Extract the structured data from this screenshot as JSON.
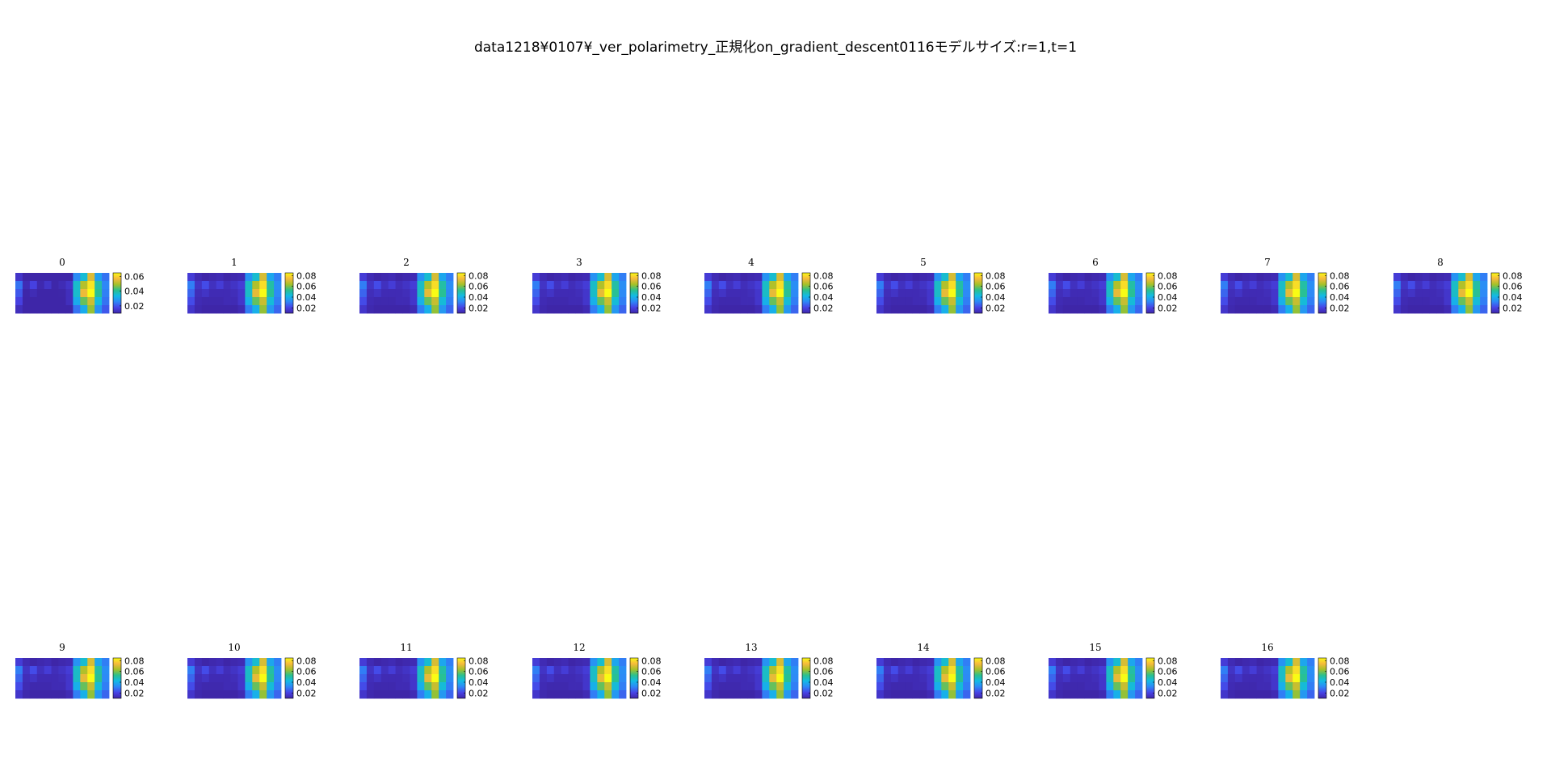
{
  "figure": {
    "title": "data1218¥0107¥_ver_polarimetry_正規化on_gradient_descent0116モデルサイズ:r=1,t=1"
  },
  "colormap": [
    "#3e26a8",
    "#4743e6",
    "#2e87f7",
    "#12bae6",
    "#2ac08e",
    "#a6c128",
    "#f7ba3c",
    "#f9fb15"
  ],
  "chart_data": {
    "type": "heatmap",
    "title": "data1218¥0107¥_ver_polarimetry_正規化on_gradient_descent0116モデルサイズ:r=1,t=1",
    "grid": false,
    "rows": 5,
    "cols": 13,
    "base_matrix": [
      [
        0.018,
        0.012,
        0.01,
        0.011,
        0.012,
        0.01,
        0.011,
        0.012,
        0.034,
        0.045,
        0.07,
        0.038,
        0.03
      ],
      [
        0.03,
        0.015,
        0.022,
        0.014,
        0.018,
        0.013,
        0.015,
        0.018,
        0.046,
        0.065,
        0.08,
        0.05,
        0.033
      ],
      [
        0.026,
        0.013,
        0.015,
        0.012,
        0.012,
        0.012,
        0.013,
        0.016,
        0.046,
        0.072,
        0.085,
        0.052,
        0.032
      ],
      [
        0.022,
        0.012,
        0.011,
        0.011,
        0.011,
        0.012,
        0.012,
        0.016,
        0.04,
        0.058,
        0.068,
        0.044,
        0.03
      ],
      [
        0.016,
        0.011,
        0.01,
        0.01,
        0.01,
        0.01,
        0.01,
        0.012,
        0.03,
        0.04,
        0.062,
        0.035,
        0.026
      ]
    ],
    "panels": [
      {
        "title": "0",
        "clim": [
          0.01,
          0.065
        ],
        "ticks": [
          "0.02",
          "0.04",
          "0.06"
        ],
        "tick_values": [
          0.02,
          0.04,
          0.06
        ],
        "scale": 0.78
      },
      {
        "title": "1",
        "clim": [
          0.01,
          0.085
        ],
        "ticks": [
          "0.02",
          "0.04",
          "0.06",
          "0.08"
        ],
        "tick_values": [
          0.02,
          0.04,
          0.06,
          0.08
        ],
        "scale": 1.0
      },
      {
        "title": "2",
        "clim": [
          0.01,
          0.085
        ],
        "ticks": [
          "0.02",
          "0.04",
          "0.06",
          "0.08"
        ],
        "tick_values": [
          0.02,
          0.04,
          0.06,
          0.08
        ],
        "scale": 1.0
      },
      {
        "title": "3",
        "clim": [
          0.01,
          0.085
        ],
        "ticks": [
          "0.02",
          "0.04",
          "0.06",
          "0.08"
        ],
        "tick_values": [
          0.02,
          0.04,
          0.06,
          0.08
        ],
        "scale": 1.0
      },
      {
        "title": "4",
        "clim": [
          0.01,
          0.085
        ],
        "ticks": [
          "0.02",
          "0.04",
          "0.06",
          "0.08"
        ],
        "tick_values": [
          0.02,
          0.04,
          0.06,
          0.08
        ],
        "scale": 1.0
      },
      {
        "title": "5",
        "clim": [
          0.01,
          0.085
        ],
        "ticks": [
          "0.02",
          "0.04",
          "0.06",
          "0.08"
        ],
        "tick_values": [
          0.02,
          0.04,
          0.06,
          0.08
        ],
        "scale": 1.0
      },
      {
        "title": "6",
        "clim": [
          0.01,
          0.085
        ],
        "ticks": [
          "0.02",
          "0.04",
          "0.06",
          "0.08"
        ],
        "tick_values": [
          0.02,
          0.04,
          0.06,
          0.08
        ],
        "scale": 1.0
      },
      {
        "title": "7",
        "clim": [
          0.01,
          0.085
        ],
        "ticks": [
          "0.02",
          "0.04",
          "0.06",
          "0.08"
        ],
        "tick_values": [
          0.02,
          0.04,
          0.06,
          0.08
        ],
        "scale": 1.0
      },
      {
        "title": "8",
        "clim": [
          0.01,
          0.085
        ],
        "ticks": [
          "0.02",
          "0.04",
          "0.06",
          "0.08"
        ],
        "tick_values": [
          0.02,
          0.04,
          0.06,
          0.08
        ],
        "scale": 1.0
      },
      {
        "title": "9",
        "clim": [
          0.01,
          0.085
        ],
        "ticks": [
          "0.02",
          "0.04",
          "0.06",
          "0.08"
        ],
        "tick_values": [
          0.02,
          0.04,
          0.06,
          0.08
        ],
        "scale": 1.0
      },
      {
        "title": "10",
        "clim": [
          0.01,
          0.085
        ],
        "ticks": [
          "0.02",
          "0.04",
          "0.06",
          "0.08"
        ],
        "tick_values": [
          0.02,
          0.04,
          0.06,
          0.08
        ],
        "scale": 1.0
      },
      {
        "title": "11",
        "clim": [
          0.01,
          0.085
        ],
        "ticks": [
          "0.02",
          "0.04",
          "0.06",
          "0.08"
        ],
        "tick_values": [
          0.02,
          0.04,
          0.06,
          0.08
        ],
        "scale": 1.0
      },
      {
        "title": "12",
        "clim": [
          0.01,
          0.085
        ],
        "ticks": [
          "0.02",
          "0.04",
          "0.06",
          "0.08"
        ],
        "tick_values": [
          0.02,
          0.04,
          0.06,
          0.08
        ],
        "scale": 1.0
      },
      {
        "title": "13",
        "clim": [
          0.01,
          0.085
        ],
        "ticks": [
          "0.02",
          "0.04",
          "0.06",
          "0.08"
        ],
        "tick_values": [
          0.02,
          0.04,
          0.06,
          0.08
        ],
        "scale": 1.0
      },
      {
        "title": "14",
        "clim": [
          0.01,
          0.085
        ],
        "ticks": [
          "0.02",
          "0.04",
          "0.06",
          "0.08"
        ],
        "tick_values": [
          0.02,
          0.04,
          0.06,
          0.08
        ],
        "scale": 1.0
      },
      {
        "title": "15",
        "clim": [
          0.01,
          0.085
        ],
        "ticks": [
          "0.02",
          "0.04",
          "0.06",
          "0.08"
        ],
        "tick_values": [
          0.02,
          0.04,
          0.06,
          0.08
        ],
        "scale": 1.0
      },
      {
        "title": "16",
        "clim": [
          0.01,
          0.085
        ],
        "ticks": [
          "0.02",
          "0.04",
          "0.06",
          "0.08"
        ],
        "tick_values": [
          0.02,
          0.04,
          0.06,
          0.08
        ],
        "scale": 1.0
      }
    ]
  }
}
